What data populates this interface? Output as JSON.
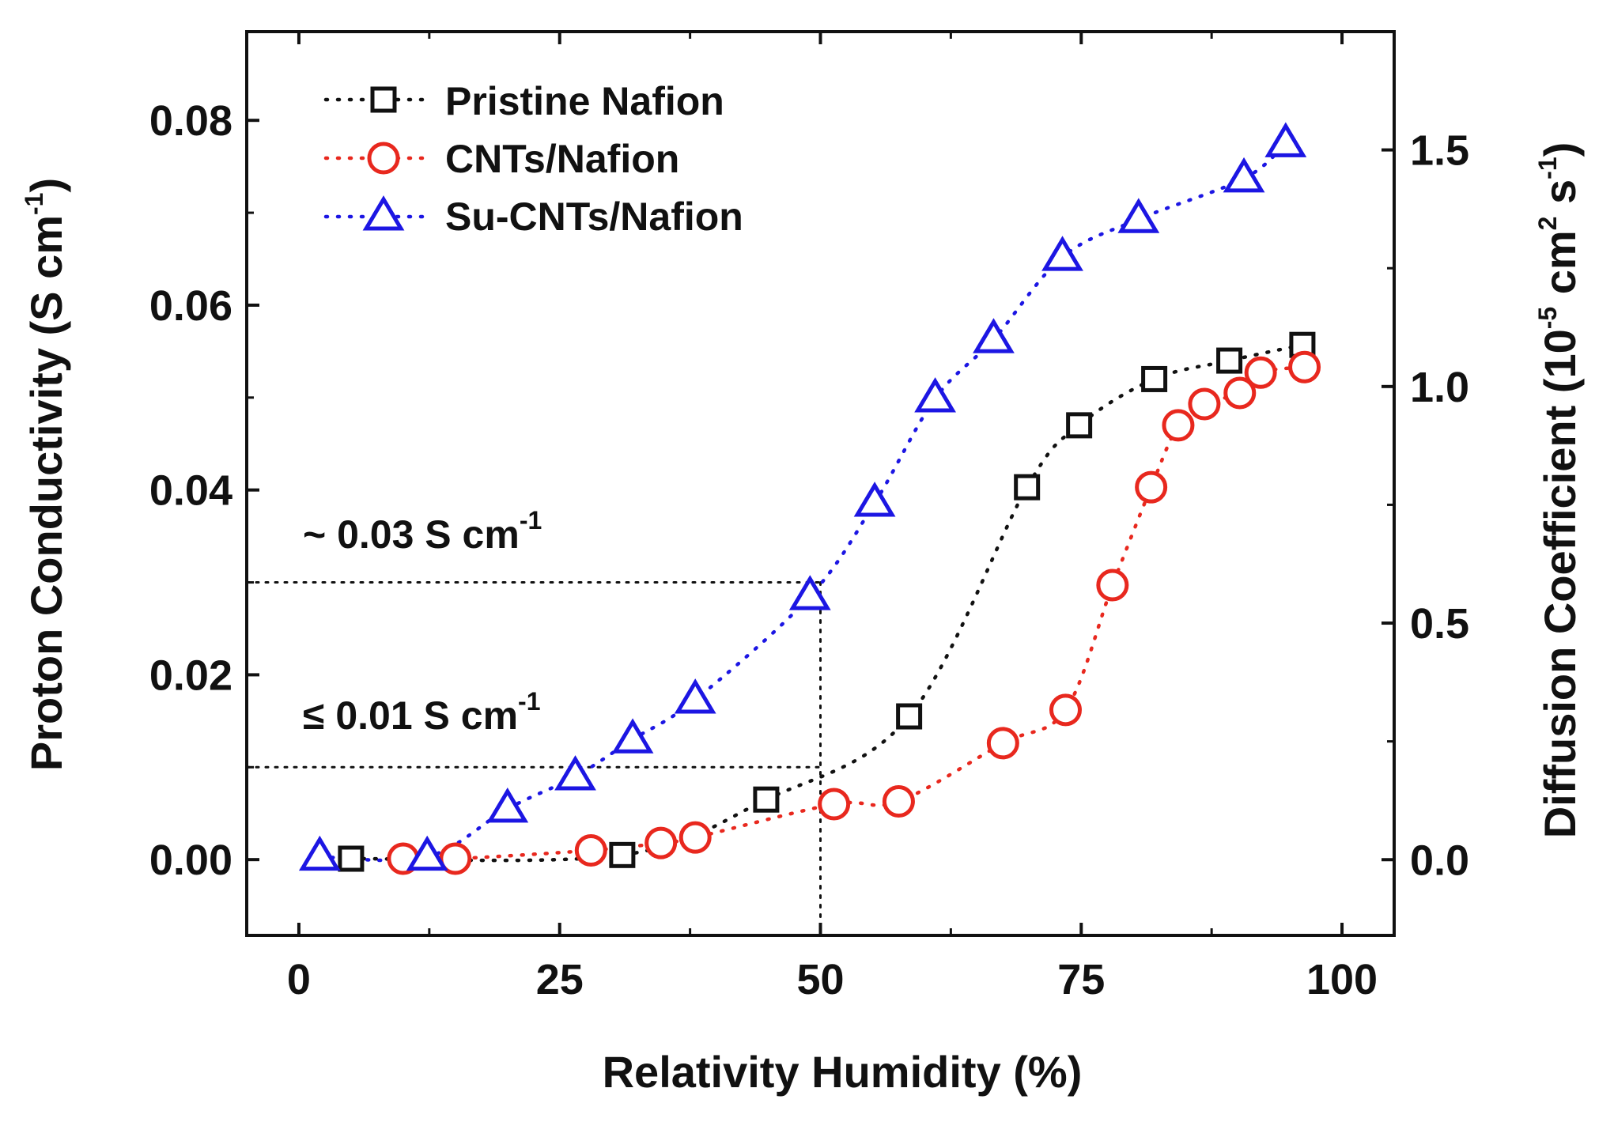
{
  "chart_data": {
    "type": "scatter",
    "x_axis": {
      "label": "Relativity Humidity (%)",
      "range": [
        -5,
        105
      ],
      "ticks": [
        0,
        25,
        50,
        75,
        100
      ],
      "tick_labels": [
        "0",
        "25",
        "50",
        "75",
        "100"
      ]
    },
    "y_axis_left": {
      "label_main": "Proton Conductivity (S cm",
      "label_sup": "-1",
      "label_close": ")",
      "range": [
        -0.0082,
        0.0896
      ],
      "ticks": [
        0.0,
        0.02,
        0.04,
        0.06,
        0.08
      ],
      "tick_labels": [
        "0.00",
        "0.02",
        "0.04",
        "0.06",
        "0.08"
      ]
    },
    "y_axis_right": {
      "label_main": "Diffusion Coefficient (10",
      "label_sup1": "-5",
      "label_mid": " cm",
      "label_sup2": "2",
      "label_mid2": " s",
      "label_sup3": "-1",
      "label_close": ")",
      "range": [
        -0.16,
        1.75
      ],
      "ticks": [
        0.0,
        0.5,
        1.0,
        1.5
      ],
      "tick_labels": [
        "0.0",
        "0.5",
        "1.0",
        "1.5"
      ]
    },
    "series": [
      {
        "name": "Pristine Nafion",
        "marker": "square",
        "color": "#111111",
        "x": [
          5,
          31,
          44.8,
          58.5,
          69.8,
          74.8,
          82,
          89.2,
          96.2
        ],
        "y": [
          0.0001,
          0.0005,
          0.0065,
          0.0155,
          0.0403,
          0.047,
          0.052,
          0.054,
          0.0557
        ]
      },
      {
        "name": "CNTs/Nafion",
        "marker": "circle",
        "color": "#e8281e",
        "x": [
          10,
          15,
          28,
          34.7,
          38,
          51.3,
          57.5,
          67.5,
          73.5,
          78,
          81.7,
          84.3,
          86.8,
          90.2,
          92.2,
          96.4
        ],
        "y": [
          0.0001,
          0.0001,
          0.001,
          0.0018,
          0.0024,
          0.006,
          0.0063,
          0.0126,
          0.0162,
          0.0297,
          0.0403,
          0.047,
          0.0493,
          0.0505,
          0.0527,
          0.0533
        ]
      },
      {
        "name": "Su-CNTs/Nafion",
        "marker": "triangle",
        "color": "#1c16e3",
        "x": [
          2,
          12.3,
          20,
          26.5,
          32,
          38,
          49,
          55.2,
          61,
          66.6,
          73.2,
          80.5,
          90.6,
          94.6
        ],
        "y": [
          0.0003,
          0.0003,
          0.0055,
          0.009,
          0.013,
          0.0173,
          0.0285,
          0.0386,
          0.0499,
          0.0563,
          0.0652,
          0.0693,
          0.0737,
          0.0775
        ]
      }
    ],
    "reference_lines": [
      {
        "x": 50,
        "y": 0.03
      },
      {
        "x": 50,
        "y": 0.01
      }
    ],
    "annotations": [
      {
        "text": "~ 0.03 S cm",
        "sup": "-1"
      },
      {
        "text": "≤ 0.01 S cm",
        "sup": "-1"
      }
    ],
    "legend": {
      "placement": "top-left",
      "entries": [
        "Pristine Nafion",
        "CNTs/Nafion",
        "Su-CNTs/Nafion"
      ]
    }
  }
}
